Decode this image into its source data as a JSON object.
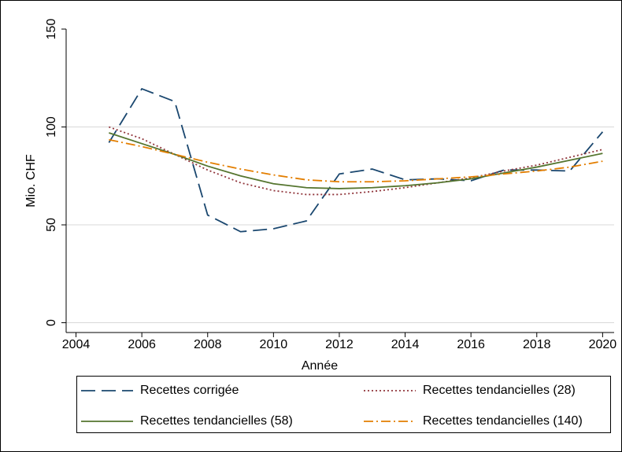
{
  "chart_data": {
    "type": "line",
    "x_label": "Année",
    "y_label": "Mio. CHF",
    "x": [
      2005,
      2006,
      2007,
      2008,
      2009,
      2010,
      2011,
      2012,
      2013,
      2014,
      2015,
      2016,
      2017,
      2018,
      2019,
      2020
    ],
    "series": [
      {
        "name": "Recettes corrigée",
        "color": "#1a476f",
        "line_style": "longdash",
        "values": [
          92,
          119.5,
          113,
          55,
          46.5,
          48,
          52,
          76,
          78.5,
          73,
          73.5,
          72.5,
          78,
          78,
          77.5,
          97.5
        ]
      },
      {
        "name": "Recettes tendancielles (28)",
        "color": "#90353b",
        "line_style": "dot",
        "values": [
          100,
          94,
          86,
          78,
          71.5,
          67.5,
          65.5,
          65.5,
          67,
          69,
          71.5,
          74,
          77.5,
          80.5,
          84.5,
          88.5
        ]
      },
      {
        "name": "Recettes tendancielles (58)",
        "color": "#55752f",
        "line_style": "solid",
        "values": [
          97,
          91.5,
          86,
          80,
          75,
          71,
          69,
          68.5,
          69,
          70,
          71.5,
          73.5,
          76.5,
          79.5,
          83,
          86.5
        ]
      },
      {
        "name": "Recettes tendancielles (140)",
        "color": "#e37e00",
        "line_style": "dashdot",
        "values": [
          93.5,
          90,
          86,
          82,
          78.5,
          75.5,
          73,
          72,
          72,
          72.5,
          73.5,
          74.5,
          76,
          77.5,
          79.5,
          82.5
        ]
      }
    ],
    "xlim": [
      2003.7,
      2020.35
    ],
    "xticks": [
      2004,
      2006,
      2008,
      2010,
      2012,
      2014,
      2016,
      2018,
      2020
    ],
    "ylim": [
      -5,
      150
    ],
    "yticks": [
      0,
      50,
      100,
      150
    ],
    "grid": true,
    "legend": "bottom",
    "legend_columns": 2
  }
}
